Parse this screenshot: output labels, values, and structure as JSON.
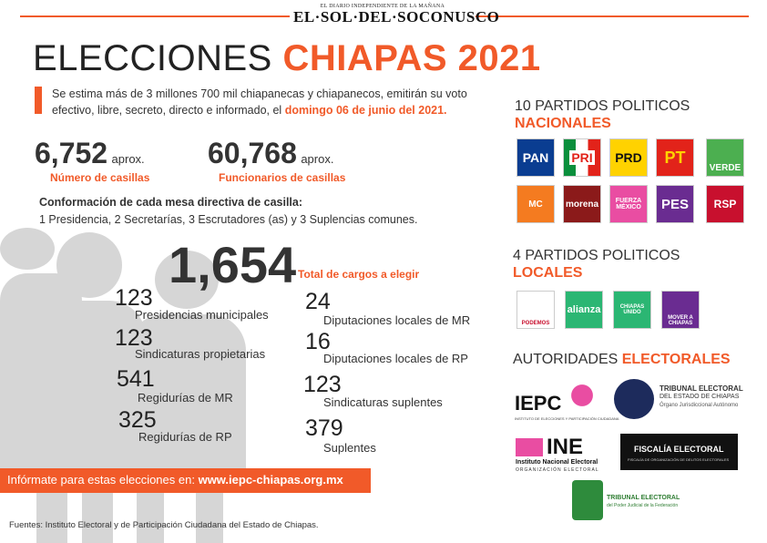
{
  "masthead": {
    "subtitle": "EL DIARIO INDEPENDIENTE DE LA MAÑANA",
    "name": "EL·SOL·DEL·SOCONUSCO"
  },
  "title": {
    "part1": "ELECCIONES",
    "part2": "CHIAPAS 2021"
  },
  "intro": {
    "text": "Se estima más de 3 millones 700 mil chiapanecas y chiapanecos, emitirán su voto efectivo, libre, secreto, directo e informado, el",
    "highlight": "domingo 06 de junio del 2021."
  },
  "stats": {
    "casillas_num": "6,752",
    "casillas_aprox": "aprox.",
    "casillas_label": "Número de casillas",
    "funcionarios_num": "60,768",
    "funcionarios_aprox": "aprox.",
    "funcionarios_label": "Funcionarios de casillas"
  },
  "conformacion": {
    "title": "Conformación de cada mesa directiva de casilla:",
    "text": "1 Presidencia, 2 Secretarías, 3 Escrutadores (as) y 3 Suplencias comunes."
  },
  "total": {
    "number": "1,654",
    "label": "Total de cargos a elegir"
  },
  "cargos_left": [
    {
      "num": "123",
      "label": "Presidencias municipales"
    },
    {
      "num": "123",
      "label": "Sindicaturas propietarias"
    },
    {
      "num": "541",
      "label": "Regidurías de MR"
    },
    {
      "num": "325",
      "label": "Regidurías de RP"
    }
  ],
  "cargos_right": [
    {
      "num": "24",
      "label": "Diputaciones locales de MR"
    },
    {
      "num": "16",
      "label": "Diputaciones locales de RP"
    },
    {
      "num": "123",
      "label": "Sindicaturas suplentes"
    },
    {
      "num": "379",
      "label": "Suplentes"
    }
  ],
  "web": {
    "prefix": "Infórmate para estas elecciones en:",
    "url": "www.iepc-chiapas.org.mx"
  },
  "sources": "Fuentes: Instituto Electoral y de Participación Ciudadana del Estado de Chiapas.",
  "nacionales": {
    "title1": "10 PARTIDOS POLITICOS",
    "title2": "NACIONALES",
    "parties": [
      {
        "label": "PAN",
        "color": "#0a3d91"
      },
      {
        "label": "PRI",
        "color": "#ffffff"
      },
      {
        "label": "PRD",
        "color": "#ffd200"
      },
      {
        "label": "PT",
        "color": "#e2231a"
      },
      {
        "label": "VERDE",
        "color": "#4caf50"
      },
      {
        "label": "MC",
        "color": "#f47b20"
      },
      {
        "label": "morena",
        "color": "#8b1a1a"
      },
      {
        "label": "FUERZA MÉXICO",
        "color": "#e94da2"
      },
      {
        "label": "PES",
        "color": "#6a2c91"
      },
      {
        "label": "RSP",
        "color": "#c8102e"
      }
    ]
  },
  "locales": {
    "title1": "4 PARTIDOS POLITICOS",
    "title2": "LOCALES",
    "parties": [
      {
        "label": "PODEMOS",
        "color": "#ffffff"
      },
      {
        "label": "alianza",
        "color": "#2bb673"
      },
      {
        "label": "CHIAPAS UNIDO",
        "color": "#2bb673"
      },
      {
        "label": "MOVER A CHIAPAS",
        "color": "#6a2c91"
      }
    ]
  },
  "autoridades": {
    "title1": "AUTORIDADES",
    "title2": "ELECTORALES",
    "iepc": "IEPC",
    "iepc_sub": "INSTITUTO DE ELECCIONES Y PARTICIPACIÓN CIUDADANA",
    "tribunal_estatal": "TRIBUNAL ELECTORAL",
    "tribunal_estatal_sub": "DEL ESTADO DE CHIAPAS",
    "tribunal_estatal_sub2": "Órgano Jurisdiccional Autónomo",
    "ine": "INE",
    "ine_sub": "Instituto Nacional Electoral",
    "ine_sub2": "ORGANIZACIÓN ELECTORAL",
    "fiscalia": "FISCALÍA ELECTORAL",
    "fiscalia_sub": "FISCALÍA DE ORGANIZACIÓN DE DELITOS ELECTORALES",
    "tepjf": "TRIBUNAL ELECTORAL",
    "tepjf_sub": "del Poder Judicial de la Federación"
  }
}
